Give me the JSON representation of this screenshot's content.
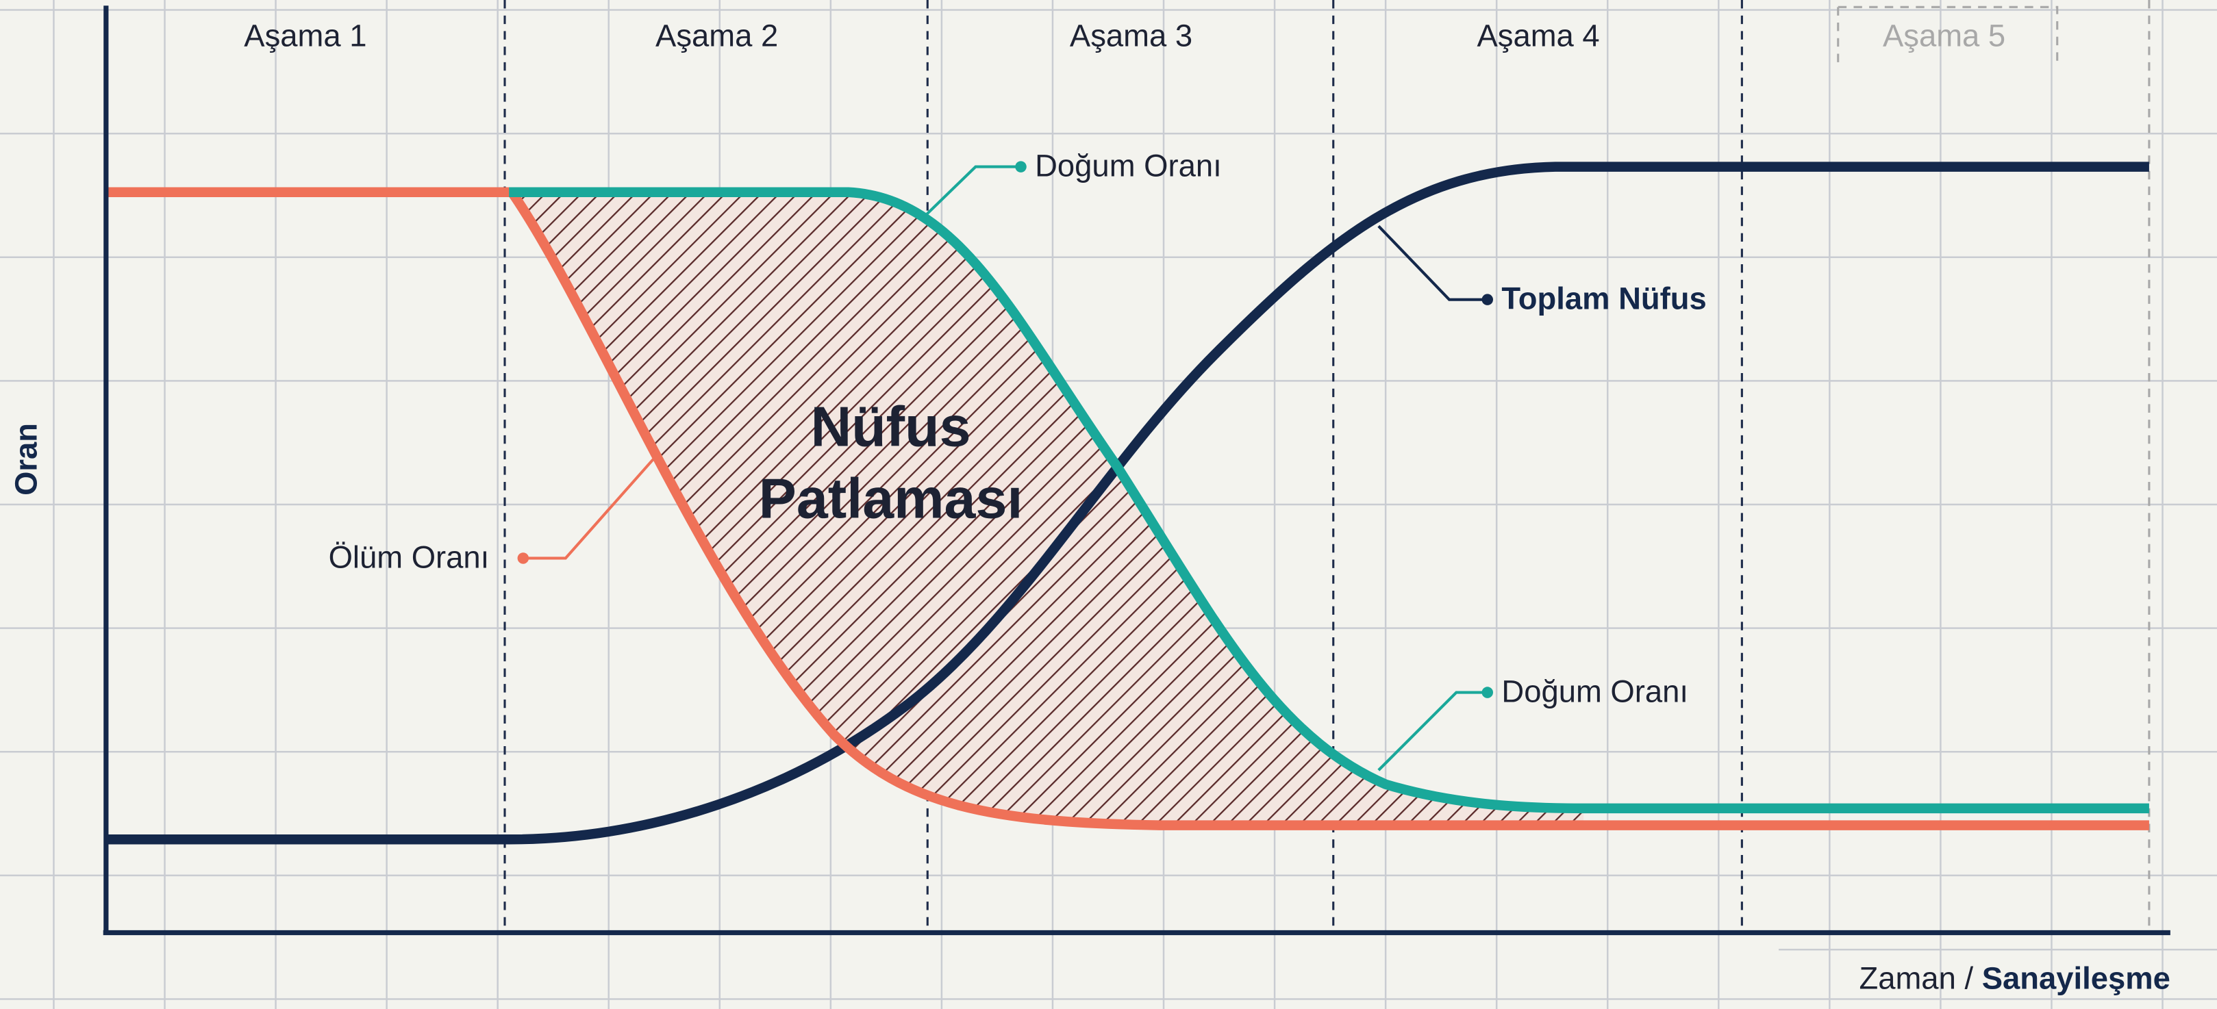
{
  "stages": [
    "Aşama 1",
    "Aşama 2",
    "Aşama 3",
    "Aşama 4",
    "Aşama 5"
  ],
  "y_axis_label": "Oran",
  "x_axis_label": {
    "main": "Zaman",
    "separator": "/",
    "emphasis": "Sanayileşme"
  },
  "annotation": [
    "Nüfus",
    "Patlaması"
  ],
  "labels": {
    "birth_rate_upper": "Doğum Oranı",
    "birth_rate_lower": "Doğum Oranı",
    "death_rate": "Ölüm Oranı",
    "total_population": "Toplam Nüfus"
  }
}
